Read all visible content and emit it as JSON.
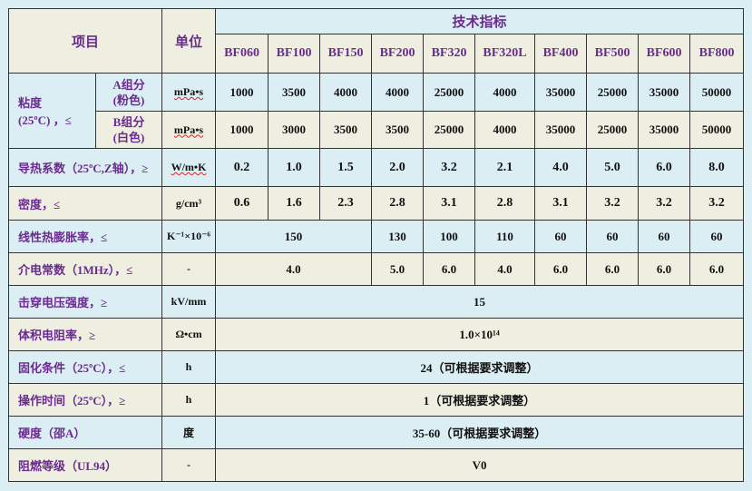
{
  "header": {
    "item": "项目",
    "unit": "单位",
    "spec": "技术指标",
    "models": [
      "BF060",
      "BF100",
      "BF150",
      "BF200",
      "BF320",
      "BF320L",
      "BF400",
      "BF500",
      "BF600",
      "BF800"
    ]
  },
  "viscosity": {
    "label": "粘度",
    "label2": "(25ºC) ，≤",
    "a": {
      "name": "A组分",
      "color": "(粉色)",
      "unit": "mPa•s",
      "values": [
        "1000",
        "3500",
        "4000",
        "4000",
        "25000",
        "4000",
        "35000",
        "25000",
        "35000",
        "50000"
      ]
    },
    "b": {
      "name": "B组分",
      "color": "(白色)",
      "unit": "mPa•s",
      "values": [
        "1000",
        "3000",
        "3500",
        "3500",
        "25000",
        "4000",
        "35000",
        "25000",
        "35000",
        "50000"
      ]
    }
  },
  "rows": [
    {
      "label": "导热系数（25ºC,Z轴），≥",
      "unit": "W/m•K",
      "cells": [
        {
          "v": "0.2"
        },
        {
          "v": "1.0"
        },
        {
          "v": "1.5"
        },
        {
          "v": "2.0"
        },
        {
          "v": "3.2"
        },
        {
          "v": "2.1"
        },
        {
          "v": "4.0"
        },
        {
          "v": "5.0"
        },
        {
          "v": "6.0"
        },
        {
          "v": "8.0"
        }
      ]
    },
    {
      "label": "密度，≤",
      "unit": "g/cm³",
      "cells": [
        {
          "v": "0.6"
        },
        {
          "v": "1.6"
        },
        {
          "v": "2.3"
        },
        {
          "v": "2.8"
        },
        {
          "v": "3.1"
        },
        {
          "v": "2.8"
        },
        {
          "v": "3.1"
        },
        {
          "v": "3.2"
        },
        {
          "v": "3.2"
        },
        {
          "v": "3.2"
        }
      ]
    },
    {
      "label": "线性热膨胀率，≤",
      "unit": "K⁻¹×10⁻⁶",
      "cells": [
        {
          "v": "150",
          "span": 3
        },
        {
          "v": "130"
        },
        {
          "v": "100"
        },
        {
          "v": "110"
        },
        {
          "v": "60"
        },
        {
          "v": "60"
        },
        {
          "v": "60"
        },
        {
          "v": "60"
        }
      ]
    },
    {
      "label": "介电常数（1MHz），≤",
      "unit": "-",
      "cells": [
        {
          "v": "4.0",
          "span": 3
        },
        {
          "v": "5.0"
        },
        {
          "v": "6.0"
        },
        {
          "v": "4.0"
        },
        {
          "v": "6.0"
        },
        {
          "v": "6.0"
        },
        {
          "v": "6.0"
        },
        {
          "v": "6.0"
        }
      ]
    },
    {
      "label": "击穿电压强度，≥",
      "unit": "kV/mm",
      "cells": [
        {
          "v": "15",
          "span": 10
        }
      ]
    },
    {
      "label": "体积电阻率，≥",
      "unit": "Ω•cm",
      "cells": [
        {
          "v": "1.0×10¹⁴",
          "span": 10
        }
      ]
    },
    {
      "label": "固化条件（25ºC），≤",
      "unit": "h",
      "cells": [
        {
          "v": "24（可根据要求调整）",
          "span": 10
        }
      ]
    },
    {
      "label": "操作时间（25ºC），≥",
      "unit": "h",
      "cells": [
        {
          "v": "1（可根据要求调整）",
          "span": 10
        }
      ]
    },
    {
      "label": "硬度（邵A）",
      "unit": "度",
      "cells": [
        {
          "v": "35-60（可根据要求调整）",
          "span": 10
        }
      ]
    },
    {
      "label": "阻燃等级（UL94）",
      "unit": "-",
      "cells": [
        {
          "v": "V0",
          "span": 10
        }
      ]
    }
  ],
  "colors": {
    "text_accent": "#6a2c8e",
    "row_blue": "#dbeef4",
    "row_cream": "#eeefe0"
  }
}
